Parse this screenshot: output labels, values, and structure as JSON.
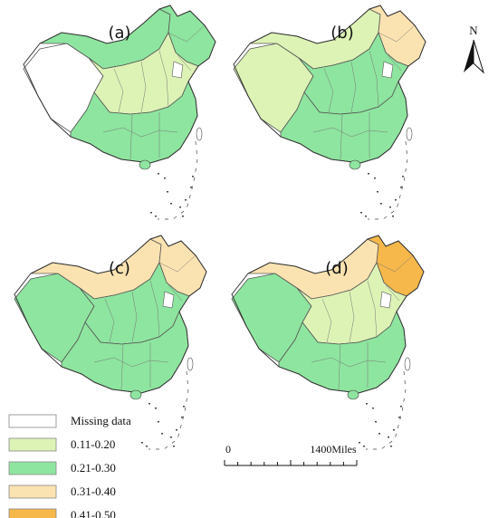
{
  "panels": [
    {
      "id": "a",
      "label": "(a)",
      "west": "#ffffff",
      "north": "#8ee59f",
      "center": "#ddf3b5",
      "south": "#8ee59f",
      "northeast": "#8ee59f"
    },
    {
      "id": "b",
      "label": "(b)",
      "west": "#ddf3b5",
      "north": "#ddf3b5",
      "center": "#8ee59f",
      "south": "#8ee59f",
      "northeast": "#fbe3b1"
    },
    {
      "id": "c",
      "label": "(c)",
      "west": "#8ee59f",
      "north": "#fbe3b1",
      "center": "#8ee59f",
      "south": "#8ee59f",
      "northeast": "#fbe3b1"
    },
    {
      "id": "d",
      "label": "(d)",
      "west": "#8ee59f",
      "north": "#fbe3b1",
      "center": "#ddf3b5",
      "south": "#8ee59f",
      "northeast": "#f6b84a"
    }
  ],
  "legend": [
    {
      "label": "Missing data",
      "color": "#ffffff"
    },
    {
      "label": "0.11-0.20",
      "color": "#ddf3b5"
    },
    {
      "label": "0.21-0.30",
      "color": "#8ee59f"
    },
    {
      "label": "0.31-0.40",
      "color": "#fbe3b1"
    },
    {
      "label": "0.41-0.50",
      "color": "#f6b84a"
    }
  ],
  "scale": {
    "start": "0",
    "end": "1400Miles"
  },
  "north": "N"
}
